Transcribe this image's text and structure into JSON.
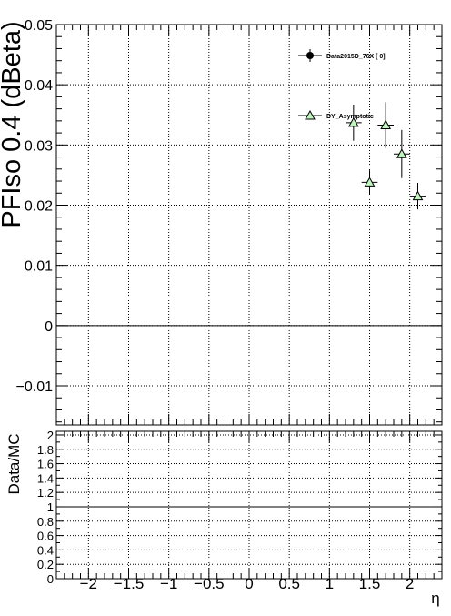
{
  "chart_data": [
    {
      "type": "scatter",
      "ylabel": "PFIso 0.4 (dBeta)",
      "xlim": [
        -2.4,
        2.4
      ],
      "ylim": [
        -0.0165,
        0.05
      ],
      "grid": true,
      "legend_position": "top-right",
      "yticks": [
        "0.05",
        "0.04",
        "0.03",
        "0.02",
        "0.01",
        "0",
        "−0.01"
      ],
      "series": [
        {
          "name": "Data2015D_76X [      0]",
          "marker": "filled-circle",
          "color": "#000000",
          "x": [],
          "y": []
        },
        {
          "name": "DY_Asymptotic",
          "marker": "open-triangle",
          "color": "#33cc33",
          "x": [
            1.3,
            1.5,
            1.7,
            1.9,
            2.1
          ],
          "y": [
            0.0337,
            0.0238,
            0.0333,
            0.0285,
            0.0215
          ],
          "yerr": [
            0.003,
            0.002,
            0.0038,
            0.004,
            0.0022
          ],
          "xerr": 0.1
        }
      ]
    },
    {
      "type": "line",
      "ylabel": "Data/MC",
      "xlabel": "η",
      "xlim": [
        -2.4,
        2.4
      ],
      "ylim": [
        0,
        2.05
      ],
      "grid": true,
      "reference_line": 1,
      "yticks": [
        "2",
        "1.8",
        "1.6",
        "1.4",
        "1.2",
        "1",
        "0.8",
        "0.6",
        "0.4",
        "0.2",
        "0"
      ],
      "xticks": [
        "−2",
        "−1.5",
        "−1",
        "−0.5",
        "0",
        "0.5",
        "1",
        "1.5",
        "2"
      ]
    }
  ]
}
